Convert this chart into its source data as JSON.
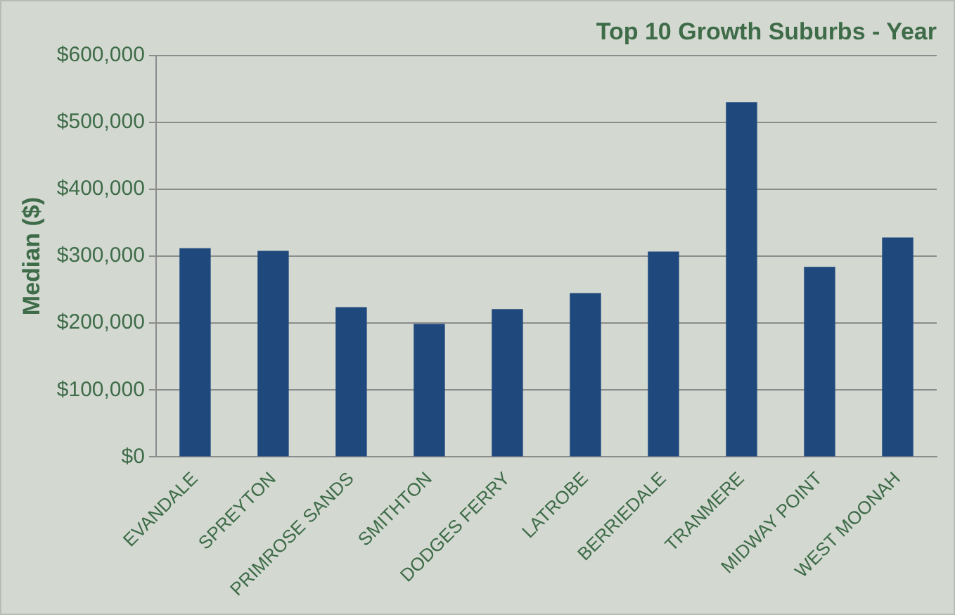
{
  "chart_data": {
    "type": "bar",
    "title": "Top 10 Growth Suburbs - Year",
    "ylabel": "Median ($)",
    "categories": [
      "EVANDALE",
      "SPREYTON",
      "PRIMROSE SANDS",
      "SMITHTON",
      "DODGES FERRY",
      "LATROBE",
      "BERRIEDALE",
      "TRANMERE",
      "MIDWAY POINT",
      "WEST MOONAH"
    ],
    "values": [
      312000,
      308000,
      224000,
      199000,
      221000,
      245000,
      307000,
      530000,
      284000,
      328000
    ],
    "color": "#1f497d",
    "ylim": [
      0,
      600000
    ],
    "yticks": [
      {
        "value": 0,
        "label": "$0"
      },
      {
        "value": 100000,
        "label": "$100,000"
      },
      {
        "value": 200000,
        "label": "$200,000"
      },
      {
        "value": 300000,
        "label": "$300,000"
      },
      {
        "value": 400000,
        "label": "$400,000"
      },
      {
        "value": 500000,
        "label": "$500,000"
      },
      {
        "value": 600000,
        "label": "$600,000"
      }
    ],
    "grid": "y"
  }
}
